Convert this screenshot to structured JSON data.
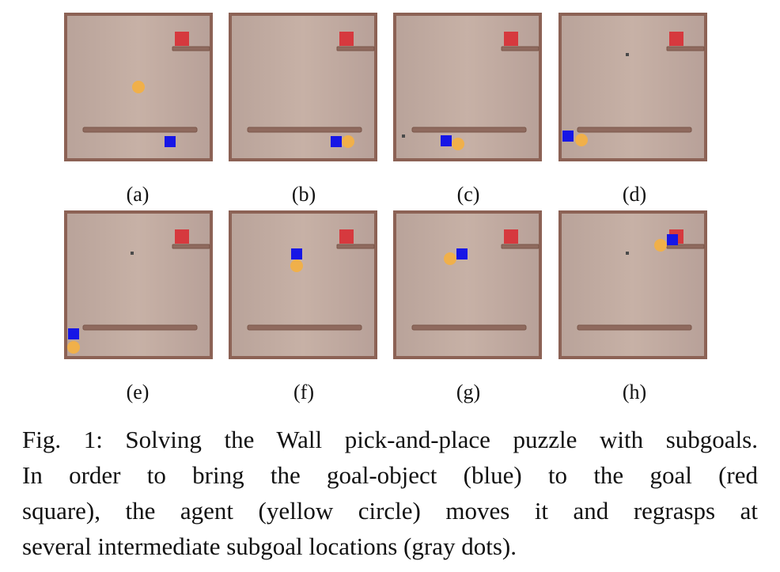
{
  "figure": {
    "panel_labels": [
      "(a)",
      "(b)",
      "(c)",
      "(d)",
      "(e)",
      "(f)",
      "(g)",
      "(h)"
    ],
    "colors": {
      "arena_floor_light": "#cdb7ab",
      "arena_floor_dark": "#b7a096",
      "arena_border": "#8c6255",
      "wall": "#8f6a5e",
      "goal": "#d6393e",
      "goal_object": "#1616e6",
      "agent": "#f0b04a",
      "subgoal": "#4a4a4a"
    }
  },
  "caption": {
    "line1": "Fig. 1: Solving the Wall pick-and-place puzzle with subgoals.",
    "line2": "In order to bring the goal-object (blue) to the goal (red",
    "line3": "square), the agent (yellow circle) moves it and regrasps at",
    "line4": "several intermediate subgoal locations (gray dots)."
  }
}
